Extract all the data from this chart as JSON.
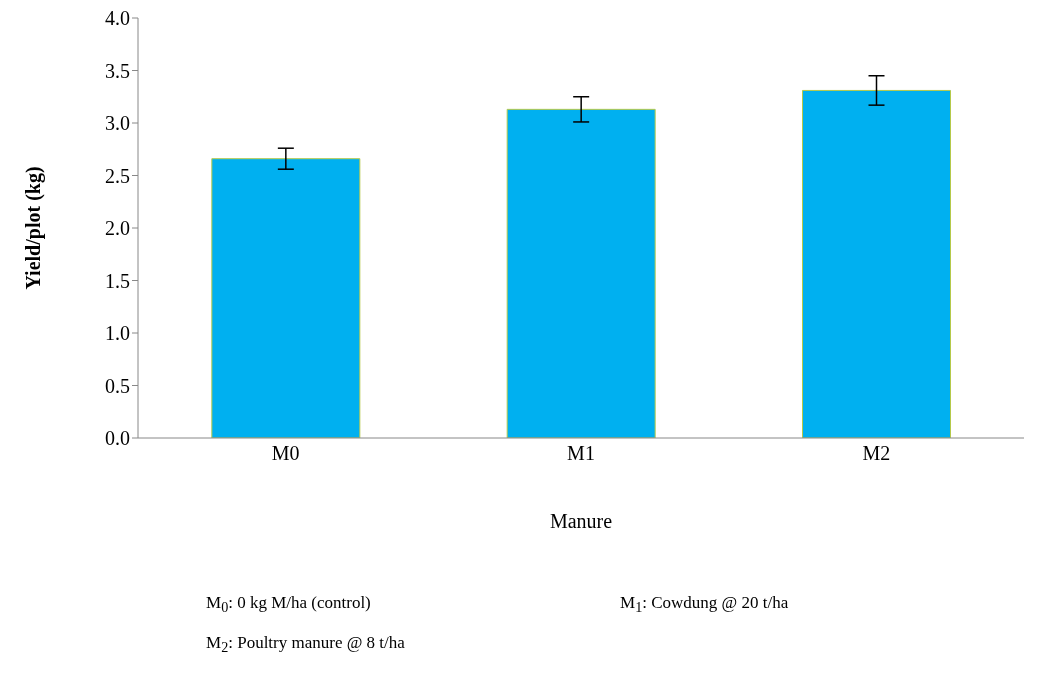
{
  "chart_data": {
    "type": "bar",
    "xlabel": "Manure",
    "ylabel": "Yield/plot  (kg)",
    "categories": [
      "M0",
      "M1",
      "M2"
    ],
    "values": [
      2.66,
      3.13,
      3.31
    ],
    "errors": [
      0.1,
      0.12,
      0.14
    ],
    "color": "#00b0f0",
    "ylim": [
      0,
      4
    ],
    "yticks": [
      {
        "value": 0,
        "label": "0.0"
      },
      0.5,
      {
        "value": 1,
        "label": "1.0"
      },
      1.5,
      {
        "value": 2,
        "label": "2.0"
      },
      2.5,
      {
        "value": 3,
        "label": "3.0"
      },
      3.5,
      {
        "value": 4,
        "label": "4.0"
      }
    ],
    "grid": false,
    "legend": false,
    "annotations": [
      "M$_{0}$: 0 kg M/ha (control)",
      "M$_{1}$: Cowdung @ 20 t/ha",
      "M$_{2}$: Poultry manure @ 8 t/ha"
    ]
  }
}
